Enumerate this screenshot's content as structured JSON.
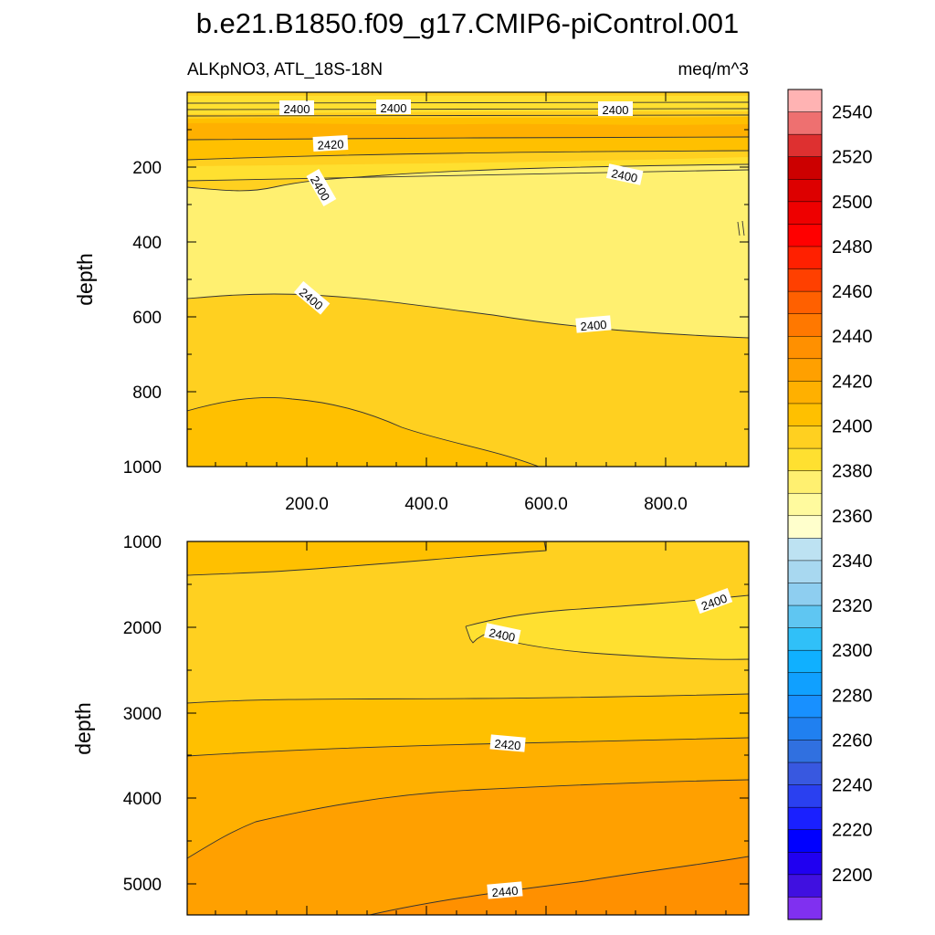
{
  "chart_data": {
    "type": "heatmap",
    "title": "b.e21.B1850.f09_g17.CMIP6-piControl.001",
    "left_subtitle": "ALKpNO3, ATL_18S-18N",
    "right_subtitle": "meq/m^3",
    "ylabel": "depth",
    "xlim": [
      0,
      940
    ],
    "top_panel": {
      "ylim": [
        1000,
        0
      ],
      "y_ticks": [
        "200",
        "400",
        "600",
        "800",
        "1000"
      ],
      "x_ticks": [
        "200.0",
        "400.0",
        "600.0",
        "800.0"
      ],
      "contour_labels": [
        "2400",
        "2400",
        "2400",
        "2420",
        "2400",
        "2400",
        "2400",
        "2400"
      ]
    },
    "bottom_panel": {
      "ylim": [
        5350,
        1000
      ],
      "y_ticks": [
        "1000",
        "2000",
        "3000",
        "4000",
        "5000"
      ],
      "contour_labels": [
        "2400",
        "2400",
        "2420",
        "2440"
      ]
    },
    "colorbar": {
      "labels": [
        "2540",
        "2520",
        "2500",
        "2480",
        "2460",
        "2440",
        "2420",
        "2400",
        "2380",
        "2360",
        "2340",
        "2320",
        "2300",
        "2280",
        "2260",
        "2240",
        "2220",
        "2200"
      ],
      "levels_top_to_bottom": [
        2550,
        2540,
        2530,
        2520,
        2510,
        2500,
        2490,
        2480,
        2470,
        2460,
        2450,
        2440,
        2430,
        2420,
        2410,
        2400,
        2390,
        2380,
        2370,
        2360,
        2350,
        2340,
        2330,
        2320,
        2310,
        2300,
        2290,
        2280,
        2270,
        2260,
        2250,
        2240,
        2230,
        2220,
        2210,
        2200,
        2190
      ],
      "colors_top_to_bottom": [
        "#ffb3b3",
        "#ee7070",
        "#de3030",
        "#cc0000",
        "#dd0000",
        "#ee0000",
        "#ff0000",
        "#ff2000",
        "#ff4000",
        "#ff6000",
        "#ff7800",
        "#ff9000",
        "#ffa000",
        "#ffb000",
        "#ffc000",
        "#ffd020",
        "#ffe030",
        "#fff070",
        "#fffa9e",
        "#ffffcc",
        "#bde2f2",
        "#a8d8f0",
        "#8ecef0",
        "#5fc6f2",
        "#30c0f8",
        "#10b0ff",
        "#10a0ff",
        "#1890ff",
        "#2080f0",
        "#3070e0",
        "#3858e0",
        "#2a40f0",
        "#1a20ff",
        "#0000ff",
        "#2000f0",
        "#4010e0",
        "#8030f0"
      ]
    },
    "fill_colors": {
      "2380_2390": "#fff070",
      "2390_2400": "#ffe030",
      "2400_2410": "#ffd020",
      "2410_2420": "#ffc000",
      "2420_2430": "#ffb000",
      "2430_2440": "#ffa000",
      "2440_2450": "#ff9000"
    }
  }
}
